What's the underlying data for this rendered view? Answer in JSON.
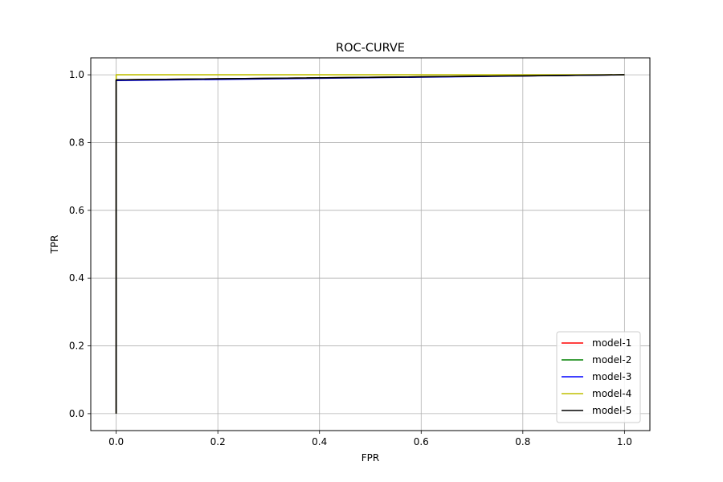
{
  "chart_data": {
    "type": "line",
    "title": "ROC-CURVE",
    "xlabel": "FPR",
    "ylabel": "TPR",
    "xlim": [
      -0.05,
      1.05
    ],
    "ylim": [
      -0.05,
      1.05
    ],
    "xticks": [
      "0.0",
      "0.2",
      "0.4",
      "0.6",
      "0.8",
      "1.0"
    ],
    "yticks": [
      "0.0",
      "0.2",
      "0.4",
      "0.6",
      "0.8",
      "1.0"
    ],
    "grid": true,
    "legend_position": "lower-right",
    "series": [
      {
        "name": "model-1",
        "color": "#ff0000",
        "x": [
          0,
          0,
          1
        ],
        "y": [
          0,
          0.985,
          1
        ]
      },
      {
        "name": "model-2",
        "color": "#008000",
        "x": [
          0,
          0,
          1
        ],
        "y": [
          0,
          0.985,
          1
        ]
      },
      {
        "name": "model-3",
        "color": "#0000ff",
        "x": [
          0,
          0,
          1
        ],
        "y": [
          0,
          0.983,
          1
        ]
      },
      {
        "name": "model-4",
        "color": "#bfbf00",
        "x": [
          0,
          0,
          1
        ],
        "y": [
          0,
          1.0,
          1
        ]
      },
      {
        "name": "model-5",
        "color": "#000000",
        "x": [
          0,
          0,
          1
        ],
        "y": [
          0,
          0.985,
          1
        ]
      }
    ]
  }
}
